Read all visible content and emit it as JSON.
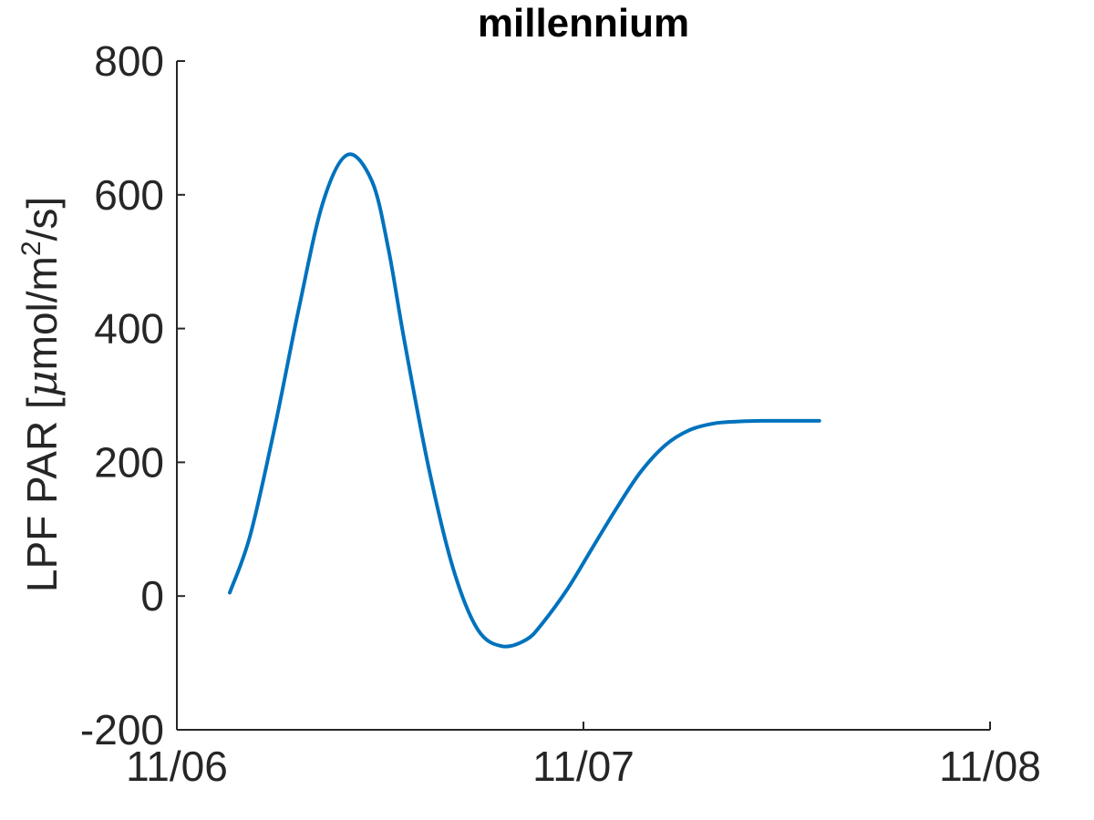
{
  "chart_data": {
    "type": "line",
    "title": "millennium",
    "ylabel": "LPF PAR [μmol/m²/s]",
    "ylabel_parts": {
      "main": "LPF PAR [",
      "mu": "μ",
      "unit": "mol/m",
      "sup": "2",
      "tail": "/s]"
    },
    "xlabel": "",
    "x_ticks": [
      "11/06",
      "11/07",
      "11/08"
    ],
    "y_ticks": [
      "-200",
      "0",
      "200",
      "400",
      "600",
      "800"
    ],
    "xlim_days": [
      0,
      2
    ],
    "ylim": [
      -200,
      800
    ],
    "grid": false,
    "series": [
      {
        "color": "#0072bd",
        "x_days": [
          0.13,
          0.18,
          0.24,
          0.3,
          0.36,
          0.42,
          0.48,
          0.52,
          0.56,
          0.62,
          0.68,
          0.74,
          0.8,
          0.86,
          0.9,
          0.96,
          1.02,
          1.08,
          1.14,
          1.2,
          1.26,
          1.32,
          1.38,
          1.44,
          1.5,
          1.58
        ],
        "values": [
          5,
          90,
          250,
          430,
          590,
          660,
          620,
          520,
          380,
          190,
          40,
          -50,
          -75,
          -65,
          -40,
          10,
          70,
          130,
          185,
          225,
          248,
          258,
          261,
          262,
          262,
          262
        ]
      }
    ]
  }
}
